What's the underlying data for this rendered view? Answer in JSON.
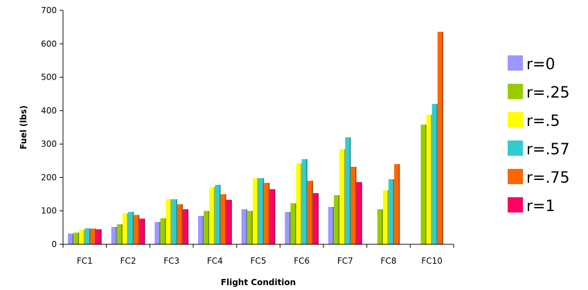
{
  "chart_data": {
    "type": "bar",
    "title": "",
    "xlabel": "Flight Condition",
    "ylabel": "Fuel (lbs)",
    "ylim": [
      0,
      700
    ],
    "yticks": [
      "0",
      "100",
      "200",
      "300",
      "400",
      "500",
      "600",
      "700"
    ],
    "ytick_values": [
      0,
      100,
      200,
      300,
      400,
      500,
      600,
      700
    ],
    "grid": false,
    "legend_position": "right",
    "categories": [
      "FC1",
      "FC2",
      "FC3",
      "FC4",
      "FC5",
      "FC6",
      "FC7",
      "FC8",
      "FC10"
    ],
    "series": [
      {
        "name": "r=0",
        "color": "#9999ff",
        "values": [
          32,
          52,
          67,
          85,
          105,
          97,
          112,
          null,
          null
        ]
      },
      {
        "name": "r=.25",
        "color": "#99cc00",
        "values": [
          35,
          60,
          78,
          100,
          100,
          123,
          147,
          105,
          358
        ]
      },
      {
        "name": "r=.5",
        "color": "#ffff00",
        "values": [
          44,
          93,
          135,
          171,
          198,
          242,
          285,
          162,
          388
        ]
      },
      {
        "name": "r=.57",
        "color": "#33cccc",
        "values": [
          48,
          97,
          135,
          178,
          198,
          255,
          320,
          195,
          420
        ]
      },
      {
        "name": "r=.75",
        "color": "#ff6600",
        "values": [
          47,
          88,
          120,
          150,
          184,
          190,
          232,
          240,
          636
        ]
      },
      {
        "name": "r=1",
        "color": "#ff0066",
        "values": [
          45,
          77,
          105,
          133,
          165,
          153,
          186,
          null,
          null
        ]
      }
    ]
  }
}
